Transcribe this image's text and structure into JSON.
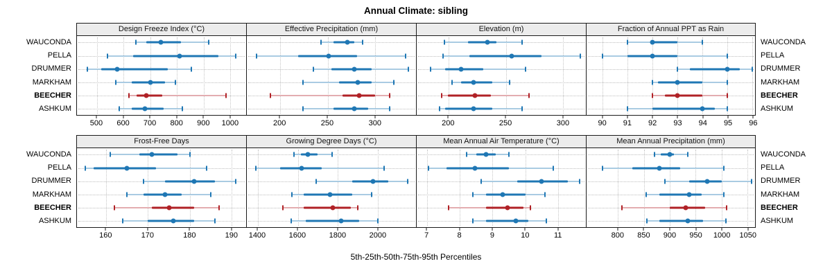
{
  "title": "Annual Climate: sibling",
  "footer": "5th-25th-50th-75th-95th Percentiles",
  "colors": {
    "series": "#1f77b4",
    "series_light": "#a9cbe2",
    "highlight": "#b02126",
    "highlight_light": "#e3adb0",
    "header_bg": "#ececec",
    "panel_border": "#1a1a1a",
    "gridline": "#c4c4c4"
  },
  "row_labels": [
    "WAUCONDA",
    "PELLA",
    "DRUMMER",
    "MARKHAM",
    "BEECHER",
    "ASHKUM"
  ],
  "highlight_label": "BEECHER",
  "chart_data": {
    "type": "interval-dot percentile chart (lattice segplot)",
    "percentiles": [
      5,
      25,
      50,
      75,
      95
    ],
    "rows": [
      "WAUCONDA",
      "PELLA",
      "DRUMMER",
      "MARKHAM",
      "BEECHER",
      "ASHKUM"
    ],
    "panels": [
      {
        "title": "Design Freeze Index (°C)",
        "ticks": [
          500,
          600,
          700,
          800,
          900,
          1000
        ],
        "xlim": [
          425,
          1060
        ],
        "series": [
          [
            645,
            685,
            740,
            815,
            920
          ],
          [
            540,
            635,
            810,
            955,
            1020
          ],
          [
            465,
            515,
            575,
            765,
            855
          ],
          [
            570,
            630,
            700,
            755,
            795
          ],
          [
            620,
            650,
            685,
            745,
            985
          ],
          [
            585,
            630,
            680,
            750,
            820
          ]
        ]
      },
      {
        "title": "Effective Precipitation (mm)",
        "ticks": [
          200,
          250,
          300
        ],
        "xlim": [
          165,
          343
        ],
        "series": [
          [
            243,
            256,
            271,
            278,
            287
          ],
          [
            175,
            219,
            251,
            281,
            332
          ],
          [
            235,
            254,
            278,
            296,
            335
          ],
          [
            224,
            262,
            282,
            296,
            320
          ],
          [
            190,
            266,
            283,
            300,
            315
          ],
          [
            224,
            256,
            278,
            293,
            315
          ]
        ]
      },
      {
        "title": "Elevation (m)",
        "ticks": [
          200,
          250,
          300
        ],
        "xlim": [
          172,
          320
        ],
        "series": [
          [
            196,
            217,
            234,
            242,
            264
          ],
          [
            195,
            218,
            255,
            281,
            315
          ],
          [
            184,
            197,
            211,
            230,
            267
          ],
          [
            203,
            211,
            222,
            238,
            253
          ],
          [
            194,
            199,
            223,
            237,
            270
          ],
          [
            192,
            197,
            222,
            238,
            264
          ]
        ]
      },
      {
        "title": "Fraction of Annual PPT as Rain",
        "ticks": [
          90,
          91,
          92,
          93,
          94,
          95,
          96
        ],
        "xlim": [
          89.35,
          96.1
        ],
        "series": [
          [
            91,
            92,
            92,
            93,
            94
          ],
          [
            90,
            91,
            92,
            93,
            95
          ],
          [
            93,
            93.5,
            95,
            95.5,
            96
          ],
          [
            92,
            92.2,
            93,
            94,
            95
          ],
          [
            92,
            92.5,
            93,
            94,
            95
          ],
          [
            91,
            92,
            94,
            94.5,
            95
          ]
        ]
      },
      {
        "title": "Frost-Free Days",
        "ticks": [
          160,
          170,
          180,
          190
        ],
        "xlim": [
          153,
          193.5
        ],
        "series": [
          [
            161,
            168,
            171,
            177,
            180
          ],
          [
            155,
            157,
            165,
            172,
            184
          ],
          [
            169,
            174,
            181,
            186,
            191
          ],
          [
            165,
            169,
            174,
            178,
            185
          ],
          [
            162,
            171,
            175,
            181,
            187
          ],
          [
            164,
            170,
            176,
            181,
            186
          ]
        ]
      },
      {
        "title": "Growing Degree Days (°C)",
        "ticks": [
          1400,
          1600,
          1800,
          2000
        ],
        "xlim": [
          1345,
          2190
        ],
        "series": [
          [
            1580,
            1615,
            1650,
            1700,
            1770
          ],
          [
            1390,
            1510,
            1620,
            1720,
            2030
          ],
          [
            1690,
            1870,
            1975,
            2050,
            2150
          ],
          [
            1570,
            1630,
            1760,
            1870,
            1970
          ],
          [
            1525,
            1630,
            1775,
            1865,
            1900
          ],
          [
            1565,
            1640,
            1815,
            1905,
            2000
          ]
        ]
      },
      {
        "title": "Mean Annual Air Temperature (°C)",
        "ticks": [
          7,
          8,
          9,
          10,
          11
        ],
        "xlim": [
          6.68,
          11.85
        ],
        "series": [
          [
            8.2,
            8.5,
            8.8,
            9.1,
            9.5
          ],
          [
            7.05,
            7.6,
            8.45,
            9.5,
            10.85
          ],
          [
            8.65,
            9.75,
            10.5,
            11.3,
            11.65
          ],
          [
            8.4,
            8.8,
            9.3,
            10.0,
            10.6
          ],
          [
            7.65,
            8.8,
            9.45,
            9.95,
            10.15
          ],
          [
            8.4,
            8.8,
            9.7,
            10.1,
            10.65
          ]
        ]
      },
      {
        "title": "Mean Annual Precipitation (mm)",
        "ticks": [
          800,
          850,
          900,
          950,
          1000,
          1050
        ],
        "xlim": [
          739,
          1065
        ],
        "series": [
          [
            870,
            882,
            900,
            908,
            935
          ],
          [
            770,
            828,
            880,
            920,
            1005
          ],
          [
            890,
            938,
            972,
            1000,
            1058
          ],
          [
            855,
            880,
            937,
            962,
            1005
          ],
          [
            807,
            900,
            931,
            968,
            1010
          ],
          [
            856,
            880,
            935,
            965,
            1009
          ]
        ]
      }
    ]
  }
}
